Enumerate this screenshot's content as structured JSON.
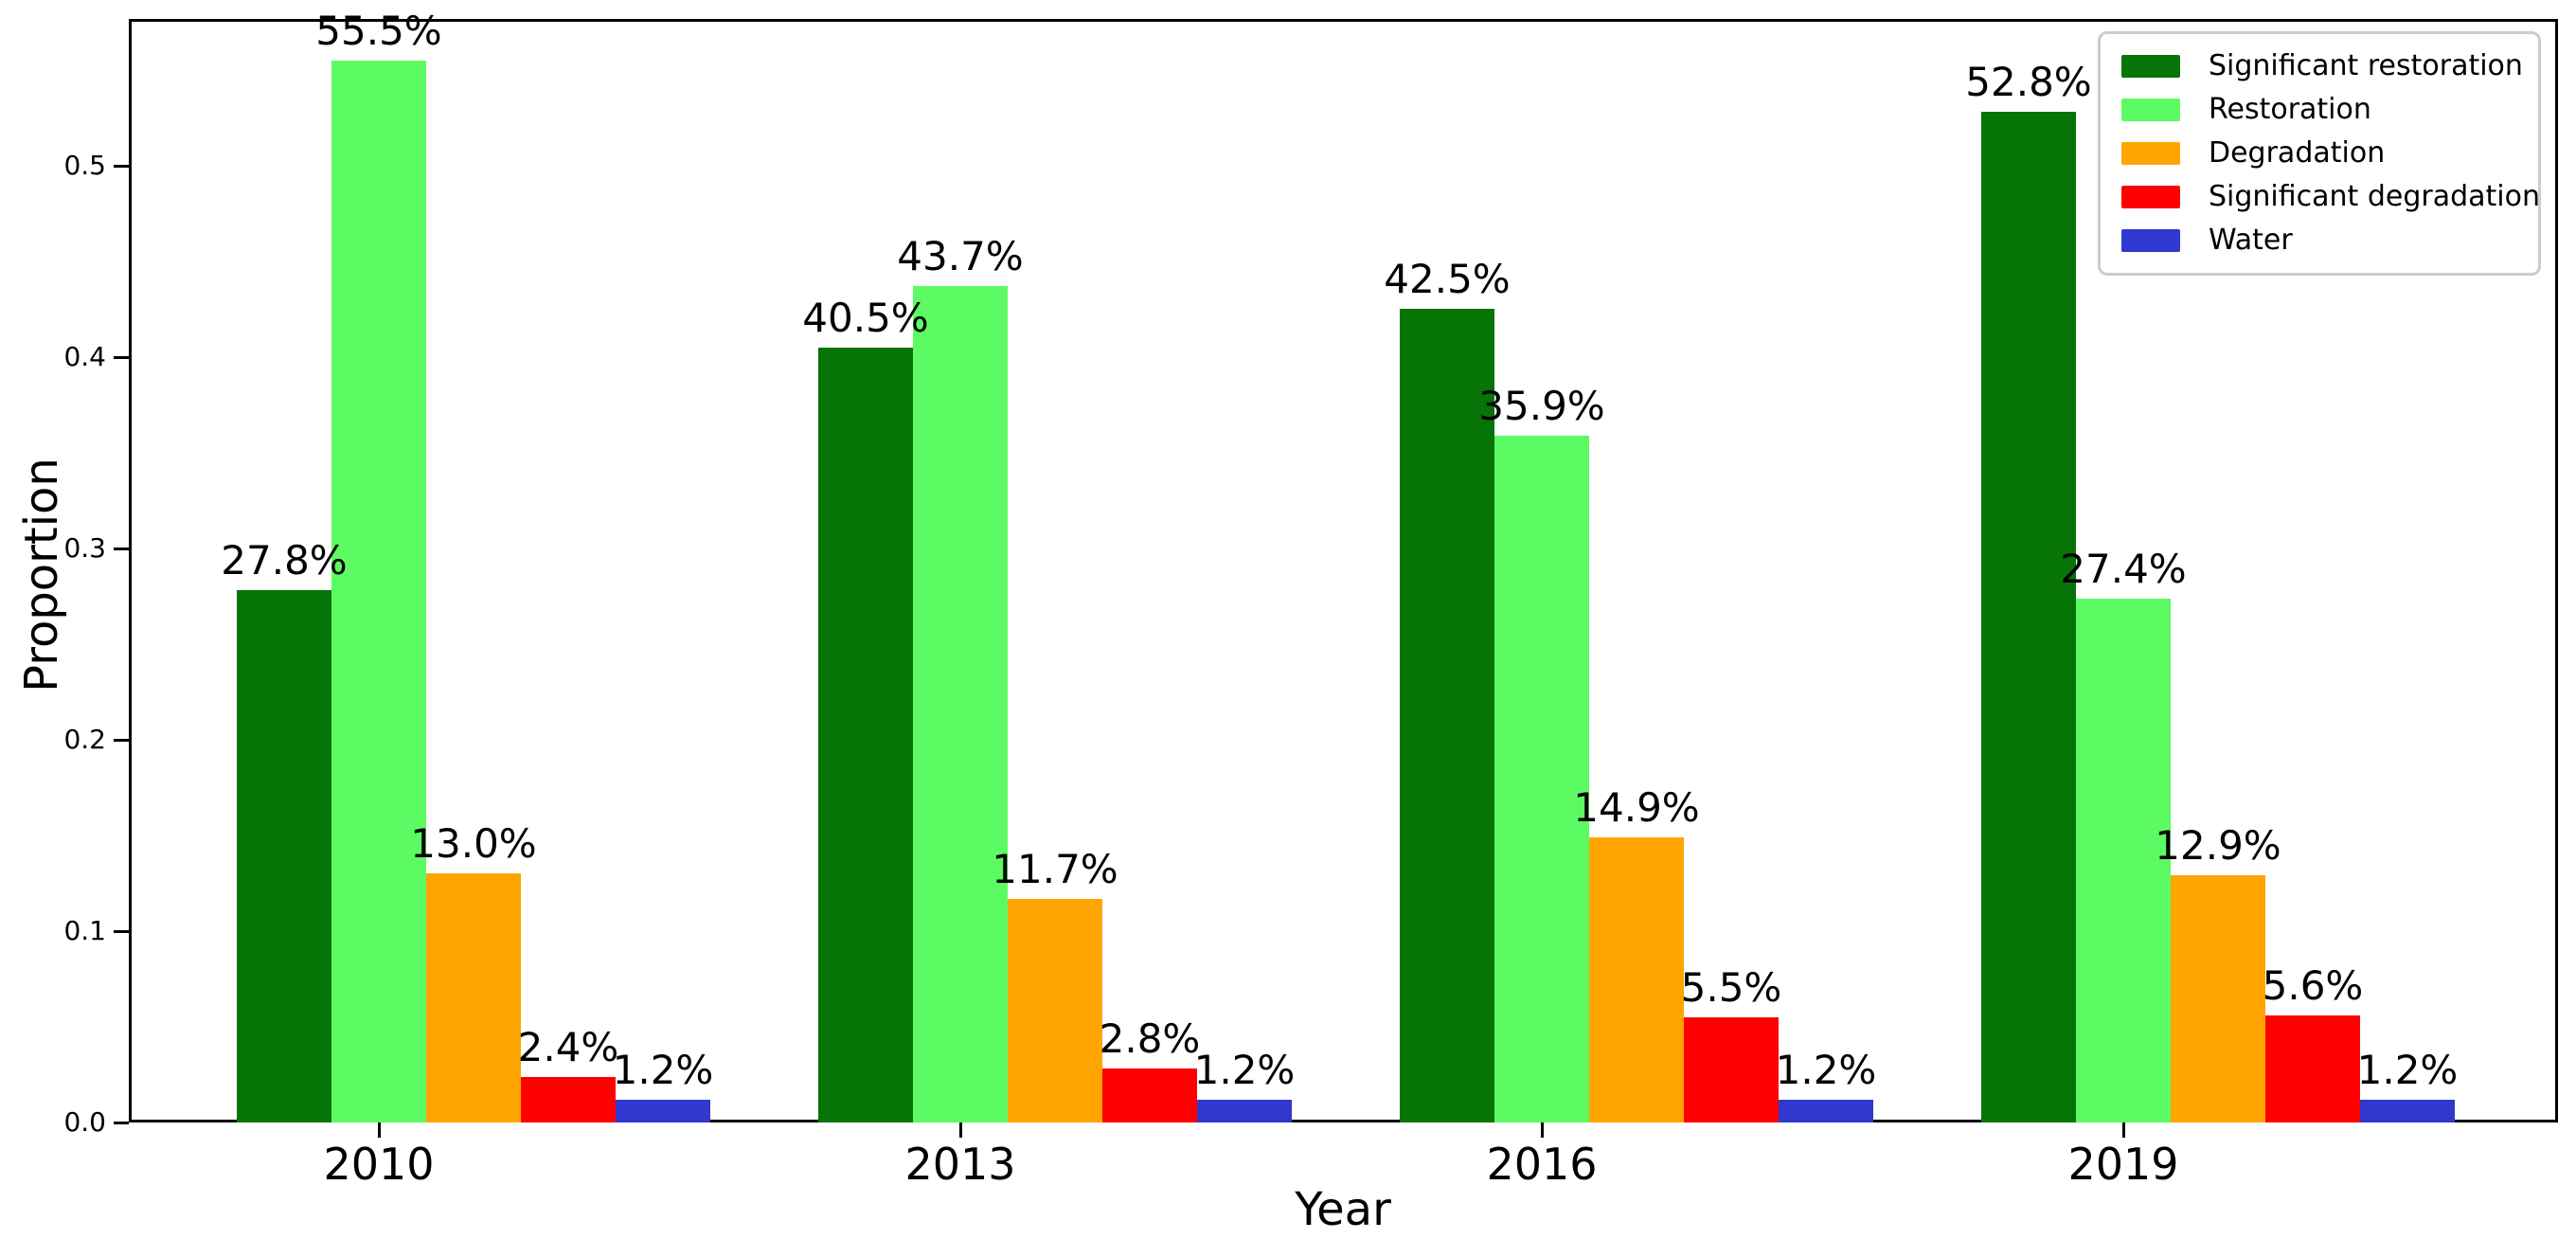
{
  "chart_data": {
    "type": "bar",
    "title": "",
    "xlabel": "Year",
    "ylabel": "Proportion",
    "categories": [
      "2010",
      "2013",
      "2016",
      "2019"
    ],
    "series": [
      {
        "name": "Significant restoration",
        "color": "#077407",
        "values": [
          0.278,
          0.405,
          0.425,
          0.528
        ],
        "labels": [
          "27.8%",
          "40.5%",
          "42.5%",
          "52.8%"
        ]
      },
      {
        "name": "Restoration",
        "color": "#5dfb63",
        "values": [
          0.555,
          0.437,
          0.359,
          0.274
        ],
        "labels": [
          "55.5%",
          "43.7%",
          "35.9%",
          "27.4%"
        ]
      },
      {
        "name": "Degradation",
        "color": "#ffa500",
        "values": [
          0.13,
          0.117,
          0.149,
          0.129
        ],
        "labels": [
          "13.0%",
          "11.7%",
          "14.9%",
          "12.9%"
        ]
      },
      {
        "name": "Significant degradation",
        "color": "#fe0000",
        "values": [
          0.024,
          0.028,
          0.055,
          0.056
        ],
        "labels": [
          "2.4%",
          "2.8%",
          "5.5%",
          "5.6%"
        ]
      },
      {
        "name": "Water",
        "color": "#3138ce",
        "values": [
          0.012,
          0.012,
          0.012,
          0.012
        ],
        "labels": [
          "1.2%",
          "1.2%",
          "1.2%",
          "1.2%"
        ]
      }
    ],
    "yticks": {
      "labels": [
        "0.0",
        "0.1",
        "0.2",
        "0.3",
        "0.4",
        "0.5"
      ],
      "values": [
        0.0,
        0.1,
        0.2,
        0.3,
        0.4,
        0.5
      ]
    },
    "ylim": [
      0.0,
      0.5767
    ],
    "grid": false,
    "legend_position": "upper right",
    "axis_color": "#000000",
    "legend_border_color": "#cccccc"
  }
}
